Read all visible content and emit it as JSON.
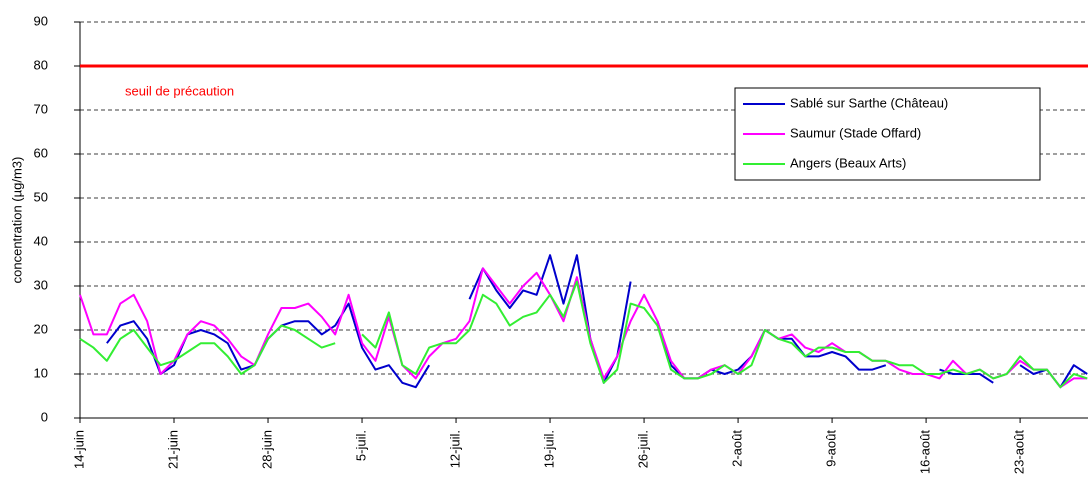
{
  "chart_data": {
    "type": "line",
    "y_label": "concentration (µg/m3)",
    "categories": [
      "14-juin",
      null,
      null,
      null,
      null,
      null,
      null,
      "21-juin",
      null,
      null,
      null,
      null,
      null,
      null,
      "28-juin",
      null,
      null,
      null,
      null,
      null,
      null,
      "5-juil.",
      null,
      null,
      null,
      null,
      null,
      null,
      "12-juil.",
      null,
      null,
      null,
      null,
      null,
      null,
      "19-juil.",
      null,
      null,
      null,
      null,
      null,
      null,
      "26-juil.",
      null,
      null,
      null,
      null,
      null,
      null,
      "2-août",
      null,
      null,
      null,
      null,
      null,
      null,
      "9-août",
      null,
      null,
      null,
      null,
      null,
      null,
      "16-août",
      null,
      null,
      null,
      null,
      null,
      null,
      "23-août",
      null,
      null,
      null,
      null,
      null
    ],
    "series": [
      {
        "name": "Sablé sur Sarthe (Château)",
        "color": "#0000cc",
        "values": [
          null,
          null,
          17,
          21,
          22,
          18,
          10,
          12,
          19,
          20,
          19,
          17,
          11,
          12,
          18,
          21,
          22,
          22,
          19,
          21,
          26,
          16,
          11,
          12,
          8,
          7,
          12,
          null,
          null,
          27,
          34,
          29,
          25,
          29,
          28,
          37,
          26,
          37,
          18,
          8,
          14,
          31,
          null,
          22,
          12,
          9,
          9,
          11,
          10,
          11,
          14,
          20,
          18,
          18,
          14,
          14,
          15,
          14,
          11,
          11,
          12,
          null,
          null,
          null,
          11,
          10,
          10,
          10,
          8,
          null,
          12,
          10,
          11,
          7,
          12,
          10
        ]
      },
      {
        "name": "Saumur (Stade Offard)",
        "color": "#ff00ff",
        "values": [
          28,
          19,
          19,
          26,
          28,
          22,
          10,
          13,
          19,
          22,
          21,
          18,
          14,
          12,
          19,
          25,
          25,
          26,
          23,
          19,
          28,
          17,
          13,
          23,
          12,
          9,
          14,
          17,
          18,
          22,
          34,
          30,
          26,
          30,
          33,
          28,
          22,
          32,
          18,
          9,
          14,
          22,
          28,
          22,
          13,
          9,
          9,
          11,
          12,
          10,
          14,
          20,
          18,
          19,
          16,
          15,
          17,
          15,
          15,
          13,
          13,
          11,
          10,
          10,
          9,
          13,
          10,
          11,
          9,
          10,
          13,
          11,
          11,
          7,
          9,
          9
        ]
      },
      {
        "name": "Angers (Beaux Arts)",
        "color": "#33ee33",
        "values": [
          18,
          16,
          13,
          18,
          20,
          16,
          12,
          13,
          15,
          17,
          17,
          14,
          10,
          12,
          18,
          21,
          20,
          18,
          16,
          17,
          null,
          19,
          16,
          24,
          12,
          10,
          16,
          17,
          17,
          20,
          28,
          26,
          21,
          23,
          24,
          28,
          23,
          31,
          17,
          8,
          11,
          26,
          25,
          21,
          11,
          9,
          9,
          10,
          12,
          10,
          12,
          20,
          18,
          17,
          14,
          16,
          16,
          15,
          15,
          13,
          13,
          12,
          12,
          10,
          10,
          11,
          10,
          11,
          9,
          10,
          14,
          11,
          11,
          7,
          10,
          9
        ]
      }
    ],
    "threshold": {
      "value": 80,
      "label": "seuil de précaution",
      "color": "#ff0000"
    },
    "ylim": [
      0,
      90
    ],
    "yticks": [
      0,
      10,
      20,
      30,
      40,
      50,
      60,
      70,
      80,
      90
    ],
    "grid": true
  }
}
